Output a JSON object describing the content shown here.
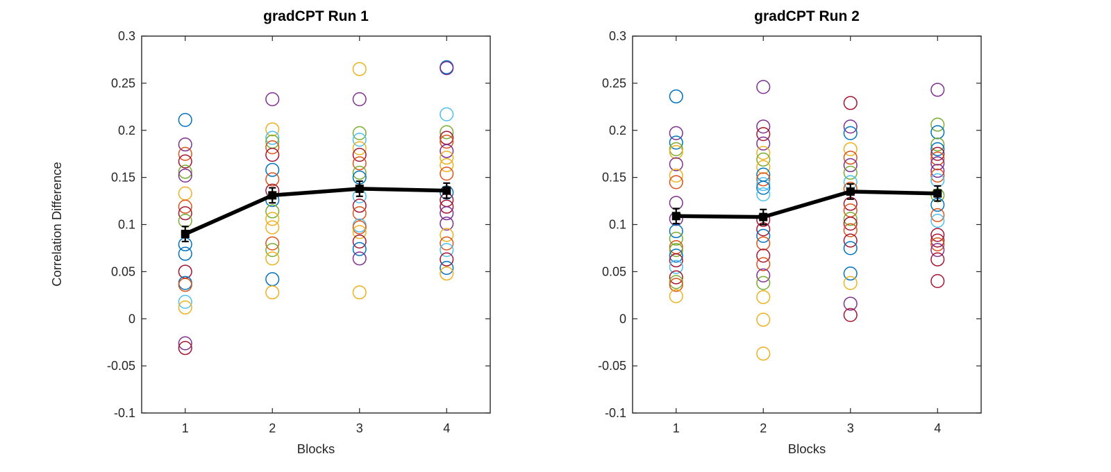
{
  "palette": {
    "blue": "#0072BD",
    "orange": "#D95319",
    "yellow": "#EDB120",
    "purple": "#7E2F8E",
    "green": "#77AC30",
    "cyan": "#4DBEEE",
    "red": "#A2142F",
    "mean_line": "#000000",
    "axis": "#262626"
  },
  "chart_data": [
    {
      "type": "scatter",
      "title": "gradCPT Run 1",
      "xlabel": "Blocks",
      "ylabel": "Correlation Difference",
      "xlim": [
        0.5,
        4.5
      ],
      "ylim": [
        -0.1,
        0.3
      ],
      "grid": false,
      "legend": "none",
      "xticks": [
        1,
        2,
        3,
        4
      ],
      "xtick_labels": [
        "1",
        "2",
        "3",
        "4"
      ],
      "yticks": [
        0.3,
        0.25,
        0.2,
        0.15,
        0.1,
        0.05,
        0,
        -0.05,
        -0.1
      ],
      "ytick_labels": [
        "0.3",
        "0.25",
        "0.2",
        "0.15",
        "0.1",
        "0.05",
        "0",
        "-0.05",
        "-0.1"
      ],
      "mean_series": {
        "name": "block mean with SEM error bars",
        "x": [
          1,
          2,
          3,
          4
        ],
        "y": [
          0.09,
          0.131,
          0.138,
          0.136
        ],
        "sem": [
          0.008,
          0.008,
          0.008,
          0.008
        ]
      },
      "points": {
        "block_1": [
          [
            0.211,
            "blue"
          ],
          [
            0.185,
            "purple"
          ],
          [
            0.175,
            "orange"
          ],
          [
            0.167,
            "red"
          ],
          [
            0.156,
            "green"
          ],
          [
            0.152,
            "purple"
          ],
          [
            0.133,
            "yellow"
          ],
          [
            0.119,
            "orange"
          ],
          [
            0.112,
            "red"
          ],
          [
            0.104,
            "green"
          ],
          [
            0.079,
            "blue"
          ],
          [
            0.069,
            "blue"
          ],
          [
            0.05,
            "red"
          ],
          [
            0.038,
            "blue"
          ],
          [
            0.036,
            "orange"
          ],
          [
            0.018,
            "cyan"
          ],
          [
            0.012,
            "yellow"
          ],
          [
            -0.026,
            "purple"
          ],
          [
            -0.031,
            "red"
          ]
        ],
        "block_2": [
          [
            0.233,
            "purple"
          ],
          [
            0.201,
            "yellow"
          ],
          [
            0.192,
            "cyan"
          ],
          [
            0.188,
            "green"
          ],
          [
            0.182,
            "orange"
          ],
          [
            0.174,
            "red"
          ],
          [
            0.158,
            "blue"
          ],
          [
            0.148,
            "orange"
          ],
          [
            0.136,
            "red"
          ],
          [
            0.126,
            "blue"
          ],
          [
            0.114,
            "green"
          ],
          [
            0.106,
            "yellow"
          ],
          [
            0.097,
            "yellow"
          ],
          [
            0.08,
            "orange"
          ],
          [
            0.073,
            "green"
          ],
          [
            0.064,
            "yellow"
          ],
          [
            0.042,
            "blue"
          ],
          [
            0.028,
            "yellow"
          ]
        ],
        "block_3": [
          [
            0.265,
            "yellow"
          ],
          [
            0.233,
            "purple"
          ],
          [
            0.197,
            "green"
          ],
          [
            0.19,
            "cyan"
          ],
          [
            0.181,
            "yellow"
          ],
          [
            0.174,
            "red"
          ],
          [
            0.165,
            "orange"
          ],
          [
            0.155,
            "green"
          ],
          [
            0.15,
            "blue"
          ],
          [
            0.13,
            "cyan"
          ],
          [
            0.12,
            "red"
          ],
          [
            0.112,
            "orange"
          ],
          [
            0.099,
            "cyan"
          ],
          [
            0.097,
            "orange"
          ],
          [
            0.092,
            "yellow"
          ],
          [
            0.082,
            "red"
          ],
          [
            0.074,
            "blue"
          ],
          [
            0.064,
            "purple"
          ],
          [
            0.028,
            "yellow"
          ]
        ],
        "block_4": [
          [
            0.267,
            "blue"
          ],
          [
            0.266,
            "purple"
          ],
          [
            0.217,
            "cyan"
          ],
          [
            0.198,
            "green"
          ],
          [
            0.192,
            "red"
          ],
          [
            0.188,
            "orange"
          ],
          [
            0.178,
            "purple"
          ],
          [
            0.171,
            "yellow"
          ],
          [
            0.163,
            "yellow"
          ],
          [
            0.154,
            "orange"
          ],
          [
            0.134,
            "blue"
          ],
          [
            0.126,
            "red"
          ],
          [
            0.119,
            "red"
          ],
          [
            0.112,
            "purple"
          ],
          [
            0.101,
            "purple"
          ],
          [
            0.089,
            "yellow"
          ],
          [
            0.08,
            "orange"
          ],
          [
            0.073,
            "cyan"
          ],
          [
            0.063,
            "red"
          ],
          [
            0.054,
            "blue"
          ],
          [
            0.048,
            "yellow"
          ]
        ]
      }
    },
    {
      "type": "scatter",
      "title": "gradCPT Run 2",
      "xlabel": "Blocks",
      "ylabel": "",
      "xlim": [
        0.5,
        4.5
      ],
      "ylim": [
        -0.1,
        0.3
      ],
      "grid": false,
      "legend": "none",
      "xticks": [
        1,
        2,
        3,
        4
      ],
      "xtick_labels": [
        "1",
        "2",
        "3",
        "4"
      ],
      "yticks": [
        0.3,
        0.25,
        0.2,
        0.15,
        0.1,
        0.05,
        0,
        -0.05,
        -0.1
      ],
      "ytick_labels": [
        "0.3",
        "0.25",
        "0.2",
        "0.15",
        "0.1",
        "0.05",
        "0",
        "-0.05",
        "-0.1"
      ],
      "mean_series": {
        "name": "block mean with SEM error bars",
        "x": [
          1,
          2,
          3,
          4
        ],
        "y": [
          0.109,
          0.108,
          0.135,
          0.133
        ],
        "sem": [
          0.008,
          0.008,
          0.008,
          0.008
        ]
      },
      "points": {
        "block_1": [
          [
            0.236,
            "blue"
          ],
          [
            0.197,
            "purple"
          ],
          [
            0.187,
            "blue"
          ],
          [
            0.18,
            "green"
          ],
          [
            0.177,
            "yellow"
          ],
          [
            0.164,
            "purple"
          ],
          [
            0.152,
            "yellow"
          ],
          [
            0.145,
            "orange"
          ],
          [
            0.123,
            "purple"
          ],
          [
            0.106,
            "purple"
          ],
          [
            0.093,
            "blue"
          ],
          [
            0.085,
            "green"
          ],
          [
            0.076,
            "orange"
          ],
          [
            0.073,
            "green"
          ],
          [
            0.067,
            "blue"
          ],
          [
            0.062,
            "red"
          ],
          [
            0.055,
            "cyan"
          ],
          [
            0.044,
            "red"
          ],
          [
            0.039,
            "green"
          ],
          [
            0.036,
            "orange"
          ],
          [
            0.024,
            "yellow"
          ]
        ],
        "block_2": [
          [
            0.246,
            "purple"
          ],
          [
            0.204,
            "purple"
          ],
          [
            0.196,
            "red"
          ],
          [
            0.186,
            "purple"
          ],
          [
            0.176,
            "yellow"
          ],
          [
            0.169,
            "green"
          ],
          [
            0.161,
            "yellow"
          ],
          [
            0.153,
            "blue"
          ],
          [
            0.148,
            "orange"
          ],
          [
            0.143,
            "cyan"
          ],
          [
            0.139,
            "blue"
          ],
          [
            0.132,
            "cyan"
          ],
          [
            0.105,
            "red"
          ],
          [
            0.095,
            "red"
          ],
          [
            0.088,
            "blue"
          ],
          [
            0.08,
            "orange"
          ],
          [
            0.067,
            "red"
          ],
          [
            0.058,
            "orange"
          ],
          [
            0.046,
            "purple"
          ],
          [
            0.038,
            "green"
          ],
          [
            0.023,
            "yellow"
          ],
          [
            -0.001,
            "yellow"
          ],
          [
            -0.037,
            "yellow"
          ]
        ],
        "block_3": [
          [
            0.229,
            "red"
          ],
          [
            0.204,
            "purple"
          ],
          [
            0.197,
            "blue"
          ],
          [
            0.18,
            "yellow"
          ],
          [
            0.171,
            "orange"
          ],
          [
            0.163,
            "purple"
          ],
          [
            0.155,
            "green"
          ],
          [
            0.145,
            "cyan"
          ],
          [
            0.138,
            "orange"
          ],
          [
            0.122,
            "red"
          ],
          [
            0.115,
            "orange"
          ],
          [
            0.106,
            "green"
          ],
          [
            0.101,
            "red"
          ],
          [
            0.094,
            "orange"
          ],
          [
            0.083,
            "red"
          ],
          [
            0.075,
            "blue"
          ],
          [
            0.048,
            "blue"
          ],
          [
            0.038,
            "yellow"
          ],
          [
            0.016,
            "purple"
          ],
          [
            0.004,
            "red"
          ]
        ],
        "block_4": [
          [
            0.243,
            "purple"
          ],
          [
            0.206,
            "green"
          ],
          [
            0.198,
            "blue"
          ],
          [
            0.185,
            "green"
          ],
          [
            0.18,
            "blue"
          ],
          [
            0.175,
            "red"
          ],
          [
            0.17,
            "orange"
          ],
          [
            0.165,
            "purple"
          ],
          [
            0.157,
            "purple"
          ],
          [
            0.152,
            "orange"
          ],
          [
            0.147,
            "cyan"
          ],
          [
            0.131,
            "green"
          ],
          [
            0.121,
            "blue"
          ],
          [
            0.11,
            "orange"
          ],
          [
            0.104,
            "cyan"
          ],
          [
            0.089,
            "red"
          ],
          [
            0.083,
            "red"
          ],
          [
            0.079,
            "orange"
          ],
          [
            0.073,
            "purple"
          ],
          [
            0.063,
            "red"
          ],
          [
            0.04,
            "red"
          ]
        ]
      }
    }
  ]
}
